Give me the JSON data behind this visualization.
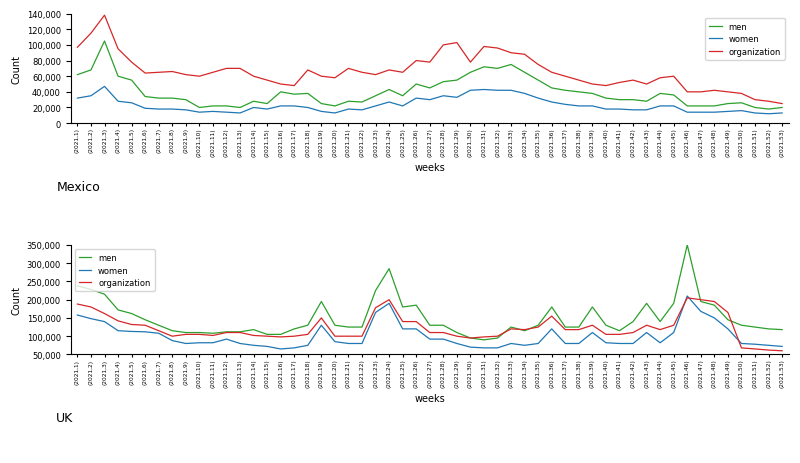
{
  "mexico_weeks": [
    "(2021,1)",
    "(2021,2)",
    "(2021,3)",
    "(2021,4)",
    "(2021,5)",
    "(2021,6)",
    "(2021,7)",
    "(2021,8)",
    "(2021,9)",
    "(2021,10)",
    "(2021,11)",
    "(2021,12)",
    "(2021,13)",
    "(2021,14)",
    "(2021,15)",
    "(2021,16)",
    "(2021,17)",
    "(2021,18)",
    "(2021,19)",
    "(2021,20)",
    "(2021,21)",
    "(2021,22)",
    "(2021,23)",
    "(2021,24)",
    "(2021,25)",
    "(2021,26)",
    "(2021,27)",
    "(2021,28)",
    "(2021,29)",
    "(2021,30)",
    "(2021,31)",
    "(2021,32)",
    "(2021,33)",
    "(2021,34)",
    "(2021,35)",
    "(2021,36)",
    "(2021,37)",
    "(2021,38)",
    "(2021,39)",
    "(2021,40)",
    "(2021,41)",
    "(2021,42)",
    "(2021,43)",
    "(2021,44)",
    "(2021,45)",
    "(2021,46)",
    "(2021,47)",
    "(2021,48)",
    "(2021,49)",
    "(2021,50)",
    "(2021,51)",
    "(2021,52)",
    "(2021,53)"
  ],
  "mexico_men": [
    62000,
    68000,
    105000,
    60000,
    55000,
    34000,
    32000,
    32000,
    30000,
    20000,
    22000,
    22000,
    20000,
    28000,
    25000,
    40000,
    37000,
    38000,
    25000,
    22000,
    28000,
    27000,
    35000,
    43000,
    35000,
    50000,
    45000,
    53000,
    55000,
    65000,
    72000,
    70000,
    75000,
    65000,
    55000,
    45000,
    42000,
    40000,
    38000,
    32000,
    30000,
    30000,
    28000,
    38000,
    36000,
    22000,
    22000,
    22000,
    25000,
    26000,
    20000,
    18000,
    20000
  ],
  "mexico_women": [
    32000,
    35000,
    47000,
    28000,
    26000,
    19000,
    18000,
    18000,
    17000,
    14000,
    15000,
    14000,
    13000,
    20000,
    18000,
    22000,
    22000,
    20000,
    15000,
    13000,
    18000,
    17000,
    22000,
    27000,
    22000,
    32000,
    30000,
    35000,
    33000,
    42000,
    43000,
    42000,
    42000,
    38000,
    32000,
    27000,
    24000,
    22000,
    22000,
    18000,
    18000,
    17000,
    17000,
    22000,
    22000,
    14000,
    14000,
    14000,
    15000,
    16000,
    13000,
    12000,
    13000
  ],
  "mexico_org": [
    97000,
    115000,
    138000,
    95000,
    78000,
    64000,
    65000,
    66000,
    62000,
    60000,
    65000,
    70000,
    70000,
    60000,
    55000,
    50000,
    48000,
    68000,
    60000,
    58000,
    70000,
    65000,
    62000,
    68000,
    65000,
    80000,
    78000,
    100000,
    103000,
    78000,
    98000,
    96000,
    90000,
    88000,
    75000,
    65000,
    60000,
    55000,
    50000,
    48000,
    52000,
    55000,
    50000,
    58000,
    60000,
    40000,
    40000,
    42000,
    40000,
    38000,
    30000,
    28000,
    25000
  ],
  "uk_weeks": [
    "(2021,1)",
    "(2021,2)",
    "(2021,3)",
    "(2021,4)",
    "(2021,5)",
    "(2021,6)",
    "(2021,7)",
    "(2021,8)",
    "(2021,9)",
    "(2021,10)",
    "(2021,11)",
    "(2021,12)",
    "(2021,13)",
    "(2021,14)",
    "(2021,15)",
    "(2021,16)",
    "(2021,17)",
    "(2021,18)",
    "(2021,19)",
    "(2021,20)",
    "(2021,21)",
    "(2021,22)",
    "(2021,23)",
    "(2021,24)",
    "(2021,25)",
    "(2021,26)",
    "(2021,27)",
    "(2021,28)",
    "(2021,29)",
    "(2021,30)",
    "(2021,31)",
    "(2021,32)",
    "(2021,33)",
    "(2021,34)",
    "(2021,35)",
    "(2021,36)",
    "(2021,37)",
    "(2021,38)",
    "(2021,39)",
    "(2021,40)",
    "(2021,41)",
    "(2021,42)",
    "(2021,43)",
    "(2021,44)",
    "(2021,45)",
    "(2021,46)",
    "(2021,47)",
    "(2021,48)",
    "(2021,49)",
    "(2021,50)",
    "(2021,51)",
    "(2021,52)",
    "(2021,53)"
  ],
  "uk_men": [
    238000,
    228000,
    215000,
    172000,
    162000,
    145000,
    130000,
    115000,
    110000,
    110000,
    108000,
    112000,
    112000,
    118000,
    105000,
    105000,
    120000,
    130000,
    195000,
    130000,
    125000,
    125000,
    225000,
    285000,
    180000,
    185000,
    130000,
    130000,
    110000,
    95000,
    90000,
    95000,
    125000,
    115000,
    130000,
    180000,
    125000,
    125000,
    180000,
    130000,
    115000,
    140000,
    190000,
    140000,
    190000,
    350000,
    195000,
    185000,
    145000,
    130000,
    125000,
    120000,
    118000
  ],
  "uk_women": [
    158000,
    148000,
    140000,
    115000,
    113000,
    112000,
    108000,
    88000,
    80000,
    82000,
    82000,
    92000,
    80000,
    75000,
    72000,
    65000,
    68000,
    75000,
    130000,
    85000,
    80000,
    80000,
    165000,
    190000,
    120000,
    120000,
    92000,
    92000,
    80000,
    70000,
    68000,
    68000,
    80000,
    75000,
    80000,
    120000,
    80000,
    80000,
    110000,
    82000,
    80000,
    80000,
    110000,
    82000,
    110000,
    210000,
    168000,
    150000,
    120000,
    80000,
    78000,
    75000,
    72000
  ],
  "uk_org": [
    188000,
    180000,
    162000,
    142000,
    132000,
    130000,
    115000,
    100000,
    105000,
    105000,
    102000,
    110000,
    110000,
    102000,
    100000,
    98000,
    100000,
    105000,
    150000,
    100000,
    100000,
    100000,
    178000,
    200000,
    140000,
    140000,
    110000,
    110000,
    100000,
    95000,
    98000,
    100000,
    120000,
    118000,
    125000,
    155000,
    118000,
    118000,
    130000,
    105000,
    105000,
    110000,
    130000,
    118000,
    130000,
    205000,
    200000,
    195000,
    165000,
    68000,
    65000,
    62000,
    60000
  ],
  "color_men": "#2ca02c",
  "color_women": "#1f77b4",
  "color_org": "#d62728",
  "ylabel": "Count",
  "xlabel": "weeks",
  "mexico_label": "Mexico",
  "uk_label": "UK",
  "legend_labels": [
    "men",
    "women",
    "organization"
  ],
  "mexico_ylim": [
    0,
    140000
  ],
  "uk_ylim": [
    50000,
    350000
  ],
  "mexico_yticks": [
    0,
    20000,
    40000,
    60000,
    80000,
    100000,
    120000,
    140000
  ],
  "uk_yticks": [
    50000,
    100000,
    150000,
    200000,
    250000,
    300000,
    350000
  ]
}
